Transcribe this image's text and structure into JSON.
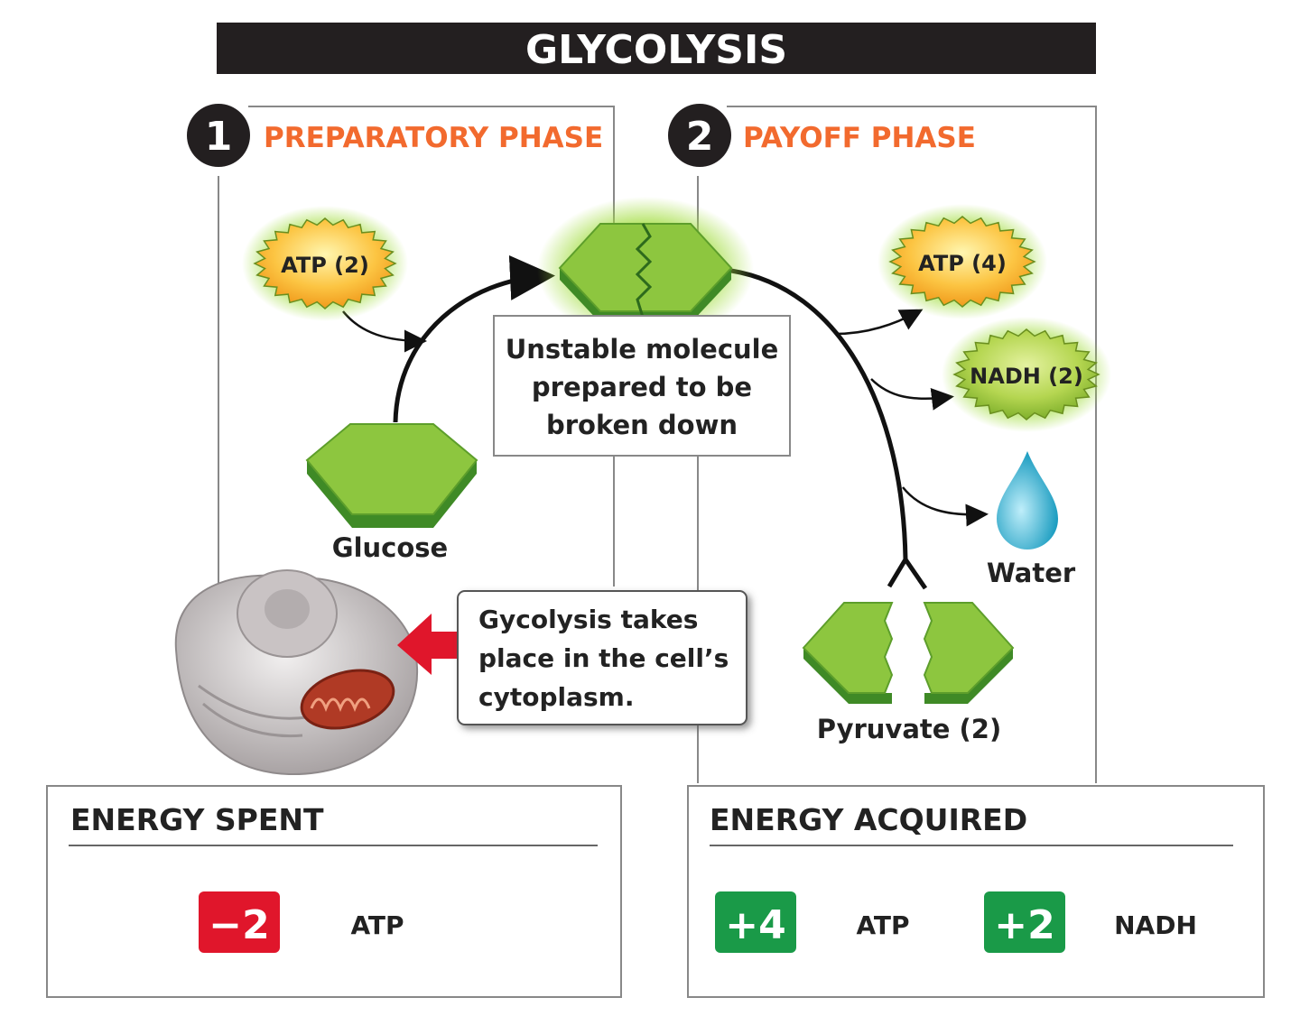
{
  "title": "GLYCOLYSIS",
  "phases": [
    {
      "number": "1",
      "label": "PREPARATORY PHASE"
    },
    {
      "number": "2",
      "label": "PAYOFF PHASE"
    }
  ],
  "molecules": {
    "atp_in": "ATP (2)",
    "atp_out": "ATP (4)",
    "nadh_out": "NADH (2)",
    "glucose": "Glucose",
    "water": "Water",
    "pyruvate": "Pyruvate (2)",
    "unstable": [
      "Unstable molecule",
      "prepared to be",
      "broken down"
    ]
  },
  "callout": [
    "Gycolysis takes",
    "place in the cell’s",
    "cytoplasm."
  ],
  "energy_spent": {
    "heading": "ENERGY SPENT",
    "amount": "−2",
    "molecule": "ATP"
  },
  "energy_acquired": {
    "heading": "ENERGY ACQUIRED",
    "items": [
      {
        "amount": "+4",
        "molecule": "ATP"
      },
      {
        "amount": "+2",
        "molecule": "NADH"
      }
    ]
  },
  "colors": {
    "accent_orange": "#f26a2e",
    "title_bar": "#231f20",
    "hexagon": "#8dc63f",
    "spent_red": "#e0162b",
    "gain_green": "#1a9a48"
  }
}
